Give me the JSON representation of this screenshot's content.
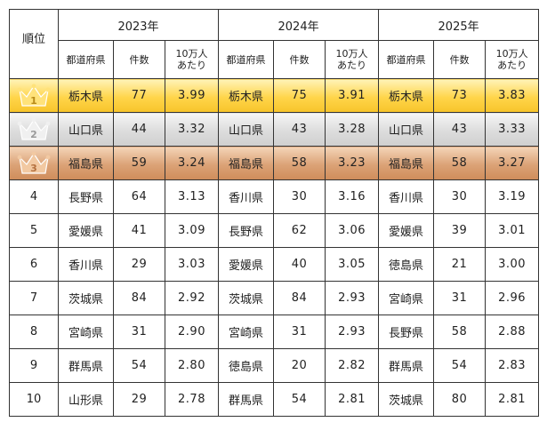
{
  "headers": {
    "rank": "順位",
    "years": [
      "2023年",
      "2024年",
      "2025年"
    ],
    "prefecture": "都道府県",
    "count": "件数",
    "rate_line1": "10万人",
    "rate_line2": "あたり"
  },
  "rows": [
    {
      "rank": "1",
      "crown": "gold-crown-icon",
      "y2023": {
        "pref": "栃木県",
        "count": "77",
        "rate": "3.99"
      },
      "y2024": {
        "pref": "栃木県",
        "count": "75",
        "rate": "3.91"
      },
      "y2025": {
        "pref": "栃木県",
        "count": "73",
        "rate": "3.83"
      }
    },
    {
      "rank": "2",
      "crown": "silver-crown-icon",
      "y2023": {
        "pref": "山口県",
        "count": "44",
        "rate": "3.32"
      },
      "y2024": {
        "pref": "山口県",
        "count": "43",
        "rate": "3.28"
      },
      "y2025": {
        "pref": "山口県",
        "count": "43",
        "rate": "3.33"
      }
    },
    {
      "rank": "3",
      "crown": "bronze-crown-icon",
      "y2023": {
        "pref": "福島県",
        "count": "59",
        "rate": "3.24"
      },
      "y2024": {
        "pref": "福島県",
        "count": "58",
        "rate": "3.23"
      },
      "y2025": {
        "pref": "福島県",
        "count": "58",
        "rate": "3.27"
      }
    },
    {
      "rank": "4",
      "y2023": {
        "pref": "長野県",
        "count": "64",
        "rate": "3.13"
      },
      "y2024": {
        "pref": "香川県",
        "count": "30",
        "rate": "3.16"
      },
      "y2025": {
        "pref": "香川県",
        "count": "30",
        "rate": "3.19"
      }
    },
    {
      "rank": "5",
      "y2023": {
        "pref": "愛媛県",
        "count": "41",
        "rate": "3.09"
      },
      "y2024": {
        "pref": "長野県",
        "count": "62",
        "rate": "3.06"
      },
      "y2025": {
        "pref": "愛媛県",
        "count": "39",
        "rate": "3.01"
      }
    },
    {
      "rank": "6",
      "y2023": {
        "pref": "香川県",
        "count": "29",
        "rate": "3.03"
      },
      "y2024": {
        "pref": "愛媛県",
        "count": "40",
        "rate": "3.05"
      },
      "y2025": {
        "pref": "徳島県",
        "count": "21",
        "rate": "3.00"
      }
    },
    {
      "rank": "7",
      "y2023": {
        "pref": "茨城県",
        "count": "84",
        "rate": "2.92"
      },
      "y2024": {
        "pref": "茨城県",
        "count": "84",
        "rate": "2.93"
      },
      "y2025": {
        "pref": "宮崎県",
        "count": "31",
        "rate": "2.96"
      }
    },
    {
      "rank": "8",
      "y2023": {
        "pref": "宮崎県",
        "count": "31",
        "rate": "2.90"
      },
      "y2024": {
        "pref": "宮崎県",
        "count": "31",
        "rate": "2.93"
      },
      "y2025": {
        "pref": "長野県",
        "count": "58",
        "rate": "2.88"
      }
    },
    {
      "rank": "9",
      "y2023": {
        "pref": "群馬県",
        "count": "54",
        "rate": "2.80"
      },
      "y2024": {
        "pref": "徳島県",
        "count": "20",
        "rate": "2.82"
      },
      "y2025": {
        "pref": "群馬県",
        "count": "54",
        "rate": "2.83"
      }
    },
    {
      "rank": "10",
      "y2023": {
        "pref": "山形県",
        "count": "29",
        "rate": "2.78"
      },
      "y2024": {
        "pref": "群馬県",
        "count": "54",
        "rate": "2.81"
      },
      "y2025": {
        "pref": "茨城県",
        "count": "80",
        "rate": "2.81"
      }
    }
  ],
  "colors": {
    "gold": "#f7c42a",
    "silver": "#cfcfcf",
    "bronze": "#cf8c5a",
    "crown_gold": "#ffe27a",
    "crown_silver": "#f0f0f0",
    "crown_bronze": "#f2c9a2",
    "crown_digit": "#b98b1a"
  }
}
